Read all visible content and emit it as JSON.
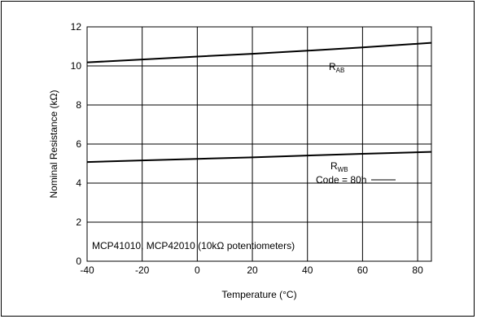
{
  "chart_data": {
    "type": "line",
    "xlabel": "Temperature  (°C)",
    "ylabel": "Nominal Resistance (kΩ)",
    "xlim": [
      -40,
      85
    ],
    "ylim": [
      0,
      12
    ],
    "x_ticks": [
      -40,
      -20,
      0,
      20,
      40,
      60,
      80
    ],
    "y_ticks": [
      0,
      2,
      4,
      6,
      8,
      10,
      12
    ],
    "grid": true,
    "series": [
      {
        "name": "RAB",
        "label_main": "R",
        "label_sub": "AB",
        "x": [
          -40,
          -20,
          0,
          20,
          40,
          60,
          85
        ],
        "y": [
          10.18,
          10.33,
          10.48,
          10.62,
          10.78,
          10.95,
          11.18
        ]
      },
      {
        "name": "RWB",
        "label_main": "R",
        "label_sub": "WB",
        "x": [
          -40,
          -20,
          0,
          20,
          40,
          60,
          85
        ],
        "y": [
          5.08,
          5.16,
          5.24,
          5.32,
          5.41,
          5.5,
          5.6
        ]
      }
    ],
    "annotations": {
      "code": "Code = 80h",
      "device": "MCP41010, MCP42010 (10kΩ potentiometers)"
    }
  }
}
